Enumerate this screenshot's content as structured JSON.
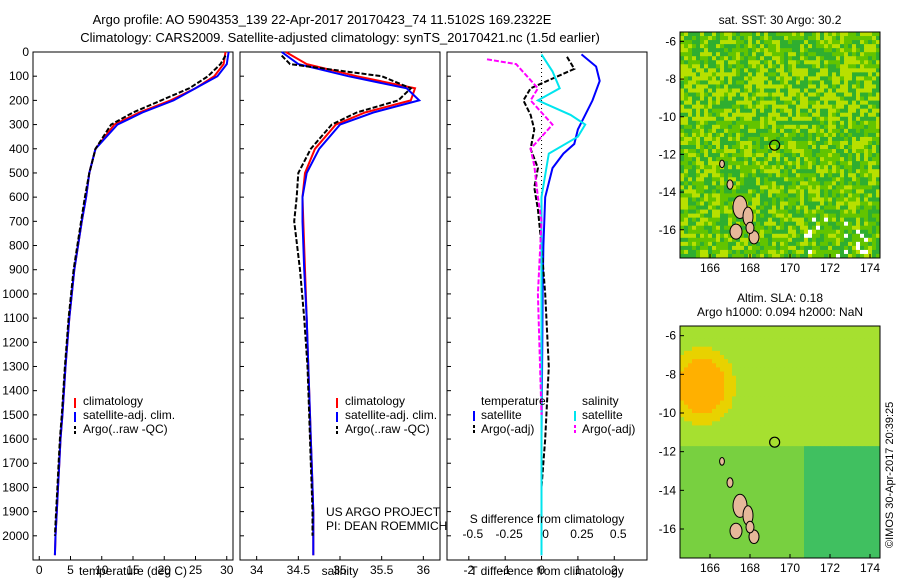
{
  "header": {
    "line1": "Argo profile: AO 5904353_139 22-Apr-2017 20170423_74 11.5102S 169.2322E",
    "line2": "Climatology: CARS2009. Satellite-adjusted climatology: synTS_20170421.nc (1.5d earlier)"
  },
  "colors": {
    "climatology": "#ff0000",
    "satellite": "#0000ff",
    "argo": "#000000",
    "satellite_diff_salinity": "#00e5ee",
    "argo_diff_salinity": "#ff00ff",
    "land": "#e6b89a"
  },
  "chart_data": [
    {
      "type": "line",
      "xlabel": "temperature (deg C)",
      "ylabel": "",
      "xlim": [
        -1,
        31
      ],
      "ylim": [
        2100,
        0
      ],
      "xticks": [
        0,
        5,
        10,
        15,
        20,
        25,
        30
      ],
      "yticks": [
        0,
        100,
        200,
        300,
        400,
        500,
        600,
        700,
        800,
        900,
        1000,
        1100,
        1200,
        1300,
        1400,
        1500,
        1600,
        1700,
        1800,
        1900,
        2000
      ],
      "legend": [
        "climatology",
        "satellite-adj. clim.",
        "Argo(..raw -QC)"
      ],
      "series": [
        {
          "name": "climatology",
          "color": "red",
          "x": [
            29.8,
            29.5,
            28,
            25,
            21,
            16,
            12,
            9,
            8,
            7.5,
            6.8,
            5.6,
            4.8,
            4.2,
            3.7,
            3.4,
            3.2,
            3.0,
            2.8,
            2.6,
            2.5
          ],
          "y": [
            0,
            50,
            100,
            150,
            200,
            250,
            300,
            400,
            500,
            600,
            700,
            900,
            1100,
            1300,
            1500,
            1600,
            1700,
            1800,
            1900,
            2000,
            2080
          ]
        },
        {
          "name": "satellite-adj. clim.",
          "color": "blue",
          "x": [
            30.3,
            30,
            28.5,
            25,
            21.5,
            16.5,
            12.5,
            9,
            8,
            7.5,
            6.8,
            5.6,
            4.8,
            4.2,
            3.7,
            3.4,
            3.2,
            3.0,
            2.8,
            2.6,
            2.5
          ],
          "y": [
            0,
            50,
            100,
            150,
            200,
            250,
            300,
            400,
            500,
            600,
            700,
            900,
            1100,
            1300,
            1500,
            1600,
            1700,
            1800,
            1900,
            2000,
            2080
          ]
        },
        {
          "name": "Argo(..raw -QC)",
          "color": "black",
          "x": [
            29.8,
            29,
            27,
            24,
            19.5,
            15,
            11.5,
            9,
            8,
            7.3,
            6.7,
            5.5,
            4.7,
            4.1,
            3.6,
            3.3,
            3.1,
            2.9,
            2.7,
            2.5
          ],
          "y": [
            15,
            50,
            100,
            150,
            200,
            250,
            300,
            400,
            500,
            600,
            700,
            900,
            1100,
            1300,
            1500,
            1600,
            1700,
            1800,
            1900,
            2000
          ]
        }
      ]
    },
    {
      "type": "line",
      "xlabel": "salinity",
      "ylabel": "",
      "xlim": [
        33.8,
        36.2
      ],
      "ylim": [
        2100,
        0
      ],
      "xticks": [
        34,
        34.5,
        35,
        35.5,
        36
      ],
      "legend": [
        "climatology",
        "satellite-adj. clim.",
        "Argo(..raw -QC)"
      ],
      "annotation": [
        "US ARGO PROJECT",
        "PI: DEAN ROEMMICH"
      ],
      "series": [
        {
          "name": "climatology",
          "color": "red",
          "x": [
            34.35,
            34.6,
            35.2,
            35.9,
            35.85,
            35.3,
            34.95,
            34.7,
            34.58,
            34.55,
            34.56,
            34.58,
            34.6,
            34.62,
            34.64,
            34.65,
            34.66,
            34.67,
            34.68,
            34.68
          ],
          "y": [
            0,
            50,
            100,
            150,
            200,
            250,
            300,
            400,
            500,
            600,
            700,
            900,
            1100,
            1300,
            1500,
            1600,
            1700,
            1800,
            1900,
            2080
          ]
        },
        {
          "name": "satellite-adj. clim.",
          "color": "blue",
          "x": [
            34.3,
            34.5,
            35.1,
            35.8,
            35.95,
            35.4,
            35.0,
            34.75,
            34.6,
            34.55,
            34.55,
            34.57,
            34.6,
            34.62,
            34.64,
            34.65,
            34.66,
            34.67,
            34.68,
            34.68
          ],
          "y": [
            0,
            50,
            100,
            150,
            200,
            250,
            300,
            400,
            500,
            600,
            700,
            900,
            1100,
            1300,
            1500,
            1600,
            1700,
            1800,
            1900,
            2080
          ]
        },
        {
          "name": "Argo(..raw -QC)",
          "color": "black",
          "x": [
            34.3,
            34.4,
            35.5,
            35.85,
            35.7,
            35.2,
            34.9,
            34.65,
            34.5,
            34.48,
            34.45,
            34.52,
            34.57,
            34.61,
            34.63,
            34.64,
            34.65,
            34.66,
            34.67,
            34.67
          ],
          "y": [
            15,
            50,
            100,
            150,
            200,
            250,
            300,
            400,
            500,
            600,
            700,
            900,
            1100,
            1300,
            1500,
            1600,
            1700,
            1800,
            1900,
            2000
          ]
        }
      ]
    },
    {
      "type": "line",
      "xlabel": "T difference from climatology",
      "x2label": "S difference from climatology",
      "xlim": [
        -2.6,
        2.9
      ],
      "ylim": [
        2100,
        0
      ],
      "xticks": [
        -2,
        -1,
        0,
        1,
        2
      ],
      "x2ticks": [
        "-0.5",
        "-0.25",
        "0",
        "0.25",
        "0.5"
      ],
      "legend_left": {
        "title": "temperature",
        "items": [
          "satellite",
          "Argo(-adj)"
        ]
      },
      "legend_right": {
        "title": "salinity",
        "items": [
          "satellite",
          "Argo(-adj)"
        ]
      },
      "series": [
        {
          "name": "temperature satellite",
          "color": "blue",
          "x": [
            1.1,
            1.5,
            1.6,
            1.4,
            1.2,
            1.0,
            0.9,
            0.6,
            0.3,
            0.1,
            0.05,
            0.03,
            0.02,
            0.01,
            0.0,
            0.0,
            0.0,
            0.0
          ],
          "y": [
            10,
            60,
            120,
            200,
            260,
            320,
            380,
            420,
            480,
            600,
            800,
            1000,
            1200,
            1400,
            1600,
            1800,
            2000,
            2080
          ]
        },
        {
          "name": "temperature Argo(-adj)",
          "color": "black",
          "x": [
            0.7,
            0.9,
            -0.3,
            -0.5,
            -0.3,
            -0.2,
            -0.3,
            -0.1,
            -0.2,
            -0.1,
            0.0,
            0.1,
            0.2,
            0.1,
            0.0,
            0.0
          ],
          "y": [
            20,
            70,
            150,
            200,
            260,
            320,
            400,
            480,
            560,
            650,
            800,
            1000,
            1300,
            1600,
            1800,
            2000
          ]
        },
        {
          "name": "salinity satellite",
          "color": "cyan",
          "x": [
            0.0,
            0.3,
            0.5,
            -0.1,
            0.8,
            1.2,
            1.0,
            0.2,
            0.0,
            0.0,
            0.0,
            0.0,
            0.0
          ],
          "y": [
            10,
            80,
            150,
            200,
            260,
            300,
            350,
            420,
            600,
            900,
            1300,
            1700,
            2080
          ]
        },
        {
          "name": "salinity Argo(-adj)",
          "color": "magenta",
          "x": [
            -1.5,
            -0.7,
            -0.4,
            -0.1,
            -0.3,
            0.3,
            -0.3,
            -0.2,
            -0.1,
            0.0,
            -0.1,
            0.0
          ],
          "y": [
            30,
            50,
            100,
            150,
            200,
            300,
            400,
            470,
            600,
            700,
            1000,
            1500
          ]
        }
      ]
    },
    {
      "type": "heatmap",
      "title": "sat. SST: 30 Argo: 30.2",
      "xlim": [
        164.5,
        174.5
      ],
      "ylim": [
        -17.5,
        -5.5
      ],
      "xticks": [
        166,
        168,
        170,
        172,
        174
      ],
      "yticks": [
        -6,
        -8,
        -10,
        -12,
        -14,
        -16
      ],
      "marker": {
        "lon": 169.2322,
        "lat": -11.5102
      }
    },
    {
      "type": "heatmap",
      "title": "Altim. SLA: 0.18",
      "subtitle": "Argo h1000: 0.094 h2000: NaN",
      "xlim": [
        164.5,
        174.5
      ],
      "ylim": [
        -17.5,
        -5.5
      ],
      "xticks": [
        166,
        168,
        170,
        172,
        174
      ],
      "yticks": [
        -6,
        -8,
        -10,
        -12,
        -14,
        -16
      ],
      "marker": {
        "lon": 169.2322,
        "lat": -11.5102
      }
    }
  ],
  "credit": "©IMOS 30-Apr-2017 20:39:25"
}
